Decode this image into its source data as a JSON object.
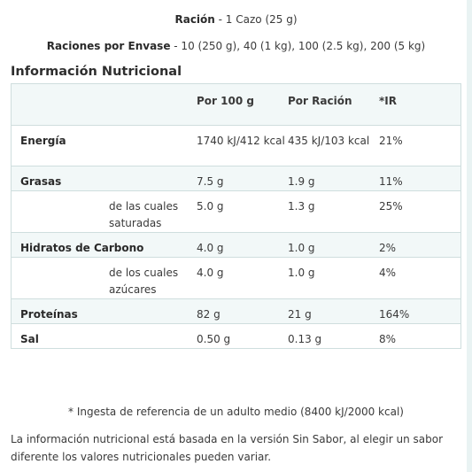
{
  "serving": {
    "label1": "Ración",
    "value1": " - 1 Cazo (25 g)",
    "label2": "Raciones por Envase",
    "value2": " - 10 (250 g), 40 (1 kg), 100 (2.5 kg), 200 (5 kg)"
  },
  "title": "Información Nutricional",
  "table": {
    "headers": [
      "",
      "Por 100 g",
      "Por Ración",
      "*IR"
    ],
    "rows": [
      {
        "name": "Energía",
        "per100": "1740 kJ/412 kcal",
        "perServing": "435 kJ/103 kcal",
        "ir": "21%"
      },
      {
        "name": "Grasas",
        "per100": "7.5 g",
        "perServing": "1.9 g",
        "ir": "11%"
      },
      {
        "name": "de las cuales saturadas",
        "per100": "5.0 g",
        "perServing": "1.3 g",
        "ir": "25%"
      },
      {
        "name": "Hidratos de Carbono",
        "per100": "4.0 g",
        "perServing": "1.0 g",
        "ir": "2%"
      },
      {
        "name": "de los cuales azúcares",
        "per100": "4.0 g",
        "perServing": "1.0 g",
        "ir": "4%"
      },
      {
        "name": "Proteínas",
        "per100": "82 g",
        "perServing": "21 g",
        "ir": "164%"
      },
      {
        "name": "Sal",
        "per100": "0.50 g",
        "perServing": "0.13 g",
        "ir": "8%"
      }
    ]
  },
  "footnote": "* Ingesta de referencia de un adulto medio (8400 kJ/2000 kcal)",
  "note": "La información nutricional está basada en la versión Sin Sabor, al elegir un sabor diferente los valores nutricionales pueden variar."
}
